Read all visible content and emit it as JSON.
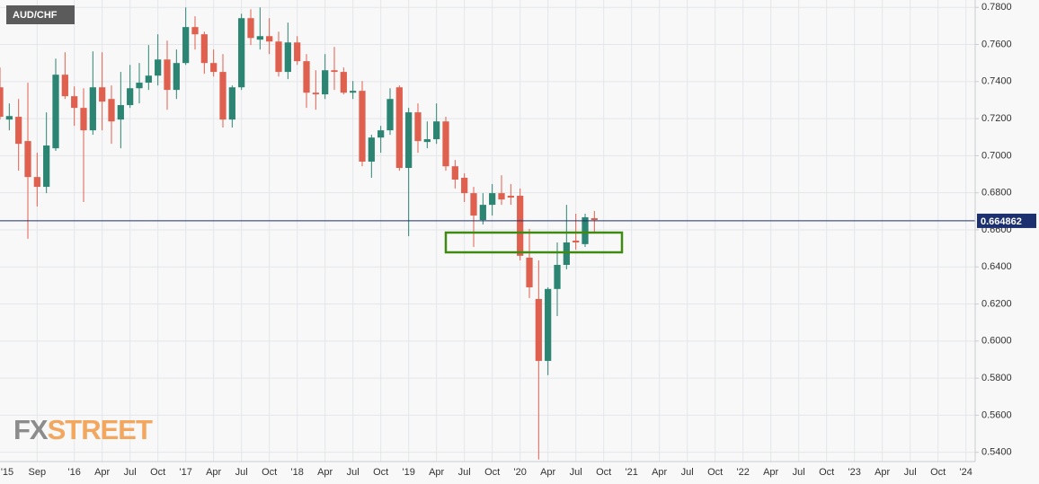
{
  "chart_data": {
    "type": "candlestick",
    "title": "AUD/CHF",
    "x": [
      "2015-05",
      "2015-06",
      "2015-07",
      "2015-08",
      "2015-09",
      "2015-10",
      "2015-11",
      "2015-12",
      "2016-01",
      "2016-02",
      "2016-03",
      "2016-04",
      "2016-05",
      "2016-06",
      "2016-07",
      "2016-08",
      "2016-09",
      "2016-10",
      "2016-11",
      "2016-12",
      "2017-01",
      "2017-02",
      "2017-03",
      "2017-04",
      "2017-05",
      "2017-06",
      "2017-07",
      "2017-08",
      "2017-09",
      "2017-10",
      "2017-11",
      "2017-12",
      "2018-01",
      "2018-02",
      "2018-03",
      "2018-04",
      "2018-05",
      "2018-06",
      "2018-07",
      "2018-08",
      "2018-09",
      "2018-10",
      "2018-11",
      "2018-12",
      "2019-01",
      "2019-02",
      "2019-03",
      "2019-04",
      "2019-05",
      "2019-06",
      "2019-07",
      "2019-08",
      "2019-09",
      "2019-10",
      "2019-11",
      "2019-12",
      "2020-01",
      "2020-02",
      "2020-03",
      "2020-04",
      "2020-05",
      "2020-06",
      "2020-07",
      "2020-08",
      "2020-09"
    ],
    "open": [
      0.7369,
      0.7195,
      0.721,
      0.7079,
      0.6885,
      0.6832,
      0.704,
      0.7437,
      0.7321,
      0.7258,
      0.7137,
      0.7369,
      0.7306,
      0.7195,
      0.7273,
      0.7364,
      0.7394,
      0.7432,
      0.7519,
      0.7355,
      0.75,
      0.7694,
      0.7655,
      0.75,
      0.7452,
      0.7195,
      0.7369,
      0.7742,
      0.7626,
      0.7645,
      0.7616,
      0.7452,
      0.7611,
      0.751,
      0.734,
      0.7331,
      0.7461,
      0.7452,
      0.734,
      0.735,
      0.6968,
      0.7098,
      0.7137,
      0.7369,
      0.6934,
      0.7234,
      0.7074,
      0.7089,
      0.7185,
      0.6943,
      0.6881,
      0.6798,
      0.6653,
      0.6735,
      0.6798,
      0.6784,
      0.6784,
      0.645,
      0.6227,
      0.5893,
      0.6281,
      0.6411,
      0.6542,
      0.6523,
      0.6663
    ],
    "high": [
      0.7476,
      0.7282,
      0.7306,
      0.7394,
      0.7016,
      0.7234,
      0.7524,
      0.7558,
      0.7374,
      0.7364,
      0.7563,
      0.7558,
      0.7379,
      0.7452,
      0.749,
      0.75,
      0.7597,
      0.7655,
      0.7621,
      0.7573,
      0.78,
      0.7752,
      0.7669,
      0.7573,
      0.7548,
      0.7379,
      0.7766,
      0.779,
      0.78,
      0.7742,
      0.7669,
      0.7718,
      0.7645,
      0.7548,
      0.7461,
      0.7548,
      0.7587,
      0.7476,
      0.7403,
      0.7403,
      0.7113,
      0.7161,
      0.7364,
      0.7379,
      0.7258,
      0.7282,
      0.7185,
      0.7282,
      0.721,
      0.6977,
      0.6905,
      0.6832,
      0.6798,
      0.6847,
      0.6895,
      0.6847,
      0.6823,
      0.6605,
      0.6435,
      0.629,
      0.6532,
      0.6735,
      0.6687,
      0.6687,
      0.6702
    ],
    "low": [
      0.7195,
      0.7137,
      0.6919,
      0.6552,
      0.6726,
      0.6798,
      0.7026,
      0.7306,
      0.7161,
      0.675,
      0.7113,
      0.7137,
      0.7064,
      0.704,
      0.7258,
      0.7282,
      0.7355,
      0.7379,
      0.7248,
      0.7306,
      0.749,
      0.7573,
      0.7442,
      0.7427,
      0.7152,
      0.7152,
      0.7355,
      0.7597,
      0.7573,
      0.7548,
      0.7427,
      0.7413,
      0.749,
      0.7258,
      0.7248,
      0.7306,
      0.7355,
      0.7331,
      0.7306,
      0.6943,
      0.6881,
      0.7016,
      0.7113,
      0.6919,
      0.6566,
      0.7016,
      0.704,
      0.7064,
      0.6919,
      0.6823,
      0.675,
      0.6508,
      0.6629,
      0.6677,
      0.6735,
      0.6735,
      0.6435,
      0.6232,
      0.5361,
      0.5816,
      0.6135,
      0.6387,
      0.6493,
      0.6508,
      0.659
    ],
    "close": [
      0.721,
      0.7214,
      0.7064,
      0.6885,
      0.6832,
      0.7055,
      0.7437,
      0.7321,
      0.7258,
      0.7137,
      0.7369,
      0.7292,
      0.7185,
      0.7273,
      0.7364,
      0.7394,
      0.7432,
      0.7519,
      0.7355,
      0.75,
      0.7694,
      0.7655,
      0.75,
      0.7452,
      0.7195,
      0.7369,
      0.7742,
      0.7635,
      0.7645,
      0.7616,
      0.7452,
      0.7611,
      0.751,
      0.734,
      0.7331,
      0.7461,
      0.7452,
      0.734,
      0.735,
      0.6968,
      0.7098,
      0.7137,
      0.7306,
      0.6934,
      0.7234,
      0.7079,
      0.7089,
      0.7185,
      0.6943,
      0.6871,
      0.6798,
      0.6677,
      0.6735,
      0.6798,
      0.6764,
      0.6774,
      0.646,
      0.629,
      0.5893,
      0.6281,
      0.6411,
      0.6532,
      0.6532,
      0.6668,
      0.6653
    ],
    "up_color": "#2b8572",
    "down_color": "#e0604f",
    "last_price": 0.664862,
    "last_price_color": "#1c2f6e",
    "ylim": [
      0.535,
      0.784
    ],
    "yticks": [
      {
        "value": 0.54,
        "label": "0.5400"
      },
      {
        "value": 0.56,
        "label": "0.5600"
      },
      {
        "value": 0.58,
        "label": "0.5800"
      },
      {
        "value": 0.6,
        "label": "0.6000"
      },
      {
        "value": 0.62,
        "label": "0.6200"
      },
      {
        "value": 0.64,
        "label": "0.6400"
      },
      {
        "value": 0.66,
        "label": "0.6600"
      },
      {
        "value": 0.68,
        "label": "0.6800"
      },
      {
        "value": 0.7,
        "label": "0.7000"
      },
      {
        "value": 0.72,
        "label": "0.7200"
      },
      {
        "value": 0.74,
        "label": "0.7400"
      },
      {
        "value": 0.76,
        "label": "0.7600"
      },
      {
        "value": 0.78,
        "label": "0.7800"
      }
    ],
    "xlim": [
      "2015-05",
      "2024-02"
    ],
    "xticks": [
      {
        "value": "2015-01",
        "label": "'15"
      },
      {
        "value": "2015-09",
        "label": "Sep"
      },
      {
        "value": "2016-01",
        "label": "'16"
      },
      {
        "value": "2016-04",
        "label": "Apr"
      },
      {
        "value": "2016-07",
        "label": "Jul"
      },
      {
        "value": "2016-10",
        "label": "Oct"
      },
      {
        "value": "2017-01",
        "label": "'17"
      },
      {
        "value": "2017-04",
        "label": "Apr"
      },
      {
        "value": "2017-07",
        "label": "Jul"
      },
      {
        "value": "2017-10",
        "label": "Oct"
      },
      {
        "value": "2018-01",
        "label": "'18"
      },
      {
        "value": "2018-04",
        "label": "Apr"
      },
      {
        "value": "2018-07",
        "label": "Jul"
      },
      {
        "value": "2018-10",
        "label": "Oct"
      },
      {
        "value": "2019-01",
        "label": "'19"
      },
      {
        "value": "2019-04",
        "label": "Apr"
      },
      {
        "value": "2019-07",
        "label": "Jul"
      },
      {
        "value": "2019-10",
        "label": "Oct"
      },
      {
        "value": "2020-01",
        "label": "'20"
      },
      {
        "value": "2020-04",
        "label": "Apr"
      },
      {
        "value": "2020-07",
        "label": "Jul"
      },
      {
        "value": "2020-10",
        "label": "Oct"
      },
      {
        "value": "2021-01",
        "label": "'21"
      },
      {
        "value": "2021-04",
        "label": "Apr"
      },
      {
        "value": "2021-07",
        "label": "Jul"
      },
      {
        "value": "2021-10",
        "label": "Oct"
      },
      {
        "value": "2022-01",
        "label": "'22"
      },
      {
        "value": "2022-04",
        "label": "Apr"
      },
      {
        "value": "2022-07",
        "label": "Jul"
      },
      {
        "value": "2022-10",
        "label": "Oct"
      },
      {
        "value": "2023-01",
        "label": "'23"
      },
      {
        "value": "2023-04",
        "label": "Apr"
      },
      {
        "value": "2023-07",
        "label": "Jul"
      },
      {
        "value": "2023-10",
        "label": "Oct"
      },
      {
        "value": "2024-01",
        "label": "'24"
      }
    ],
    "grid": true
  },
  "watermark": [
    "FX",
    "STREET"
  ]
}
